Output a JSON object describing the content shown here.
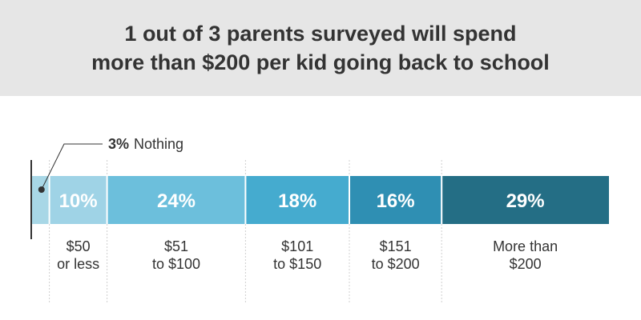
{
  "title_lines": [
    "1 out of 3 parents surveyed will spend",
    "more than $200 per kid going back to school"
  ],
  "colors": {
    "header_bg": "#e6e6e6",
    "text": "#333333",
    "segments": [
      "#a8d7e6",
      "#9fd3e6",
      "#6cbfdc",
      "#45abcf",
      "#2f8fb3",
      "#246e85"
    ]
  },
  "chart_data": {
    "type": "bar",
    "orientation": "horizontal-stacked",
    "unit": "%",
    "categories": [
      "Nothing",
      "$50 or less",
      "$51 to $100",
      "$101 to $150",
      "$151 to $200",
      "More than $200"
    ],
    "category_lines": [
      [
        "Nothing"
      ],
      [
        "$50",
        "or less"
      ],
      [
        "$51",
        "to $100"
      ],
      [
        "$101",
        "to $150"
      ],
      [
        "$151",
        "to $200"
      ],
      [
        "More than",
        "$200"
      ]
    ],
    "values": [
      3,
      10,
      24,
      18,
      16,
      29
    ],
    "value_labels": [
      "3%",
      "10%",
      "24%",
      "18%",
      "16%",
      "29%"
    ],
    "callout": {
      "value": "3%",
      "label": "Nothing"
    },
    "xlim": [
      0,
      100
    ]
  }
}
